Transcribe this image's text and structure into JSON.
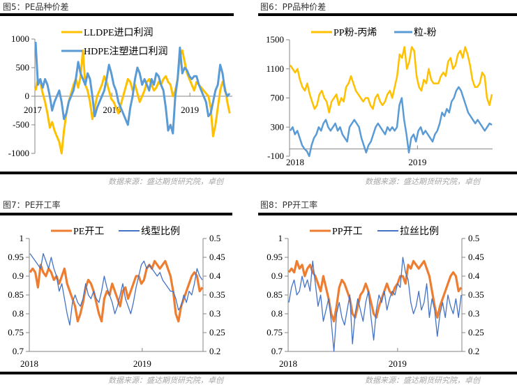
{
  "colors": {
    "gold": "#FFC000",
    "lightblue": "#5B9BD5",
    "orange": "#ED7D31",
    "blue": "#4472C4",
    "axis": "#868686"
  },
  "panels": [
    {
      "title": "图5：PE品种价差",
      "source": "数据来源：盛达期货研究院，卓创"
    },
    {
      "title": "图6：PP品种价差",
      "source": "数据来源：盛达期货研究院，卓创"
    },
    {
      "title": "图7：PE开工率",
      "source": "数据来源：盛达期货研究院，卓创"
    },
    {
      "title": "图8：PP开工率",
      "source": "数据来源：盛达期货研究院，卓创"
    }
  ],
  "chart_data": [
    {
      "type": "line",
      "title": "图5：PE品种价差",
      "ylim": [
        -1000,
        1000
      ],
      "yticks": [
        "1000",
        "500",
        "0",
        "-500",
        "-1000"
      ],
      "xticks": [
        "2017",
        "2018",
        "2019"
      ],
      "x_range": [
        "2017-01",
        "2019-10"
      ],
      "legend": "top-center",
      "series": [
        {
          "name": "LLDPE进口利润",
          "color": "#FFC000",
          "values": [
            100,
            300,
            250,
            50,
            -100,
            -300,
            -550,
            -450,
            -600,
            -700,
            -800,
            -1000,
            -600,
            -300,
            -100,
            50,
            200,
            300,
            150,
            350,
            800,
            200,
            100,
            -100,
            -400,
            -200,
            0,
            100,
            200,
            350,
            250,
            100,
            -50,
            -100,
            -200,
            -300,
            -150,
            0,
            150,
            300,
            250,
            100,
            200,
            50,
            -100,
            0,
            100,
            250,
            300,
            200,
            100,
            150,
            250,
            200,
            300,
            350,
            250,
            200,
            0,
            100,
            300,
            700,
            800,
            600,
            400,
            300,
            200,
            100,
            250,
            200,
            150,
            100,
            50,
            0,
            -200,
            -700,
            -500,
            -200,
            100,
            250,
            150,
            -100,
            -300
          ]
        },
        {
          "name": "HDPE注塑进口利润",
          "color": "#5B9BD5",
          "values": [
            950,
            200,
            300,
            150,
            300,
            200,
            0,
            -250,
            -100,
            0,
            100,
            -100,
            -400,
            -300,
            -100,
            0,
            100,
            300,
            600,
            400,
            300,
            200,
            400,
            300,
            0,
            -350,
            -200,
            -100,
            0,
            100,
            300,
            550,
            400,
            200,
            100,
            -100,
            -200,
            -300,
            -400,
            -500,
            -200,
            0,
            300,
            500,
            400,
            200,
            300,
            200,
            100,
            300,
            200,
            400,
            350,
            200,
            100,
            -200,
            -600,
            -500,
            -650,
            0,
            300,
            850,
            400,
            500,
            450,
            350,
            300,
            350,
            350,
            200,
            100,
            0,
            -100,
            -350,
            -300,
            -100,
            100,
            200,
            550,
            400,
            100,
            0,
            50
          ]
        }
      ]
    },
    {
      "type": "line",
      "title": "图6：PP品种价差",
      "ylim": [
        -100,
        1500
      ],
      "yticks": [
        "1500",
        "1100",
        "700",
        "300",
        "-100"
      ],
      "xticks": [
        "2018",
        "2019"
      ],
      "x_range": [
        "2018-01",
        "2019-10"
      ],
      "legend": "top-center",
      "series": [
        {
          "name": "PP粉-丙烯",
          "color": "#FFC000",
          "values": [
            1150,
            1100,
            1050,
            1100,
            950,
            850,
            800,
            900,
            750,
            650,
            550,
            600,
            750,
            800,
            700,
            650,
            500,
            650,
            700,
            750,
            600,
            700,
            650,
            850,
            900,
            1000,
            900,
            800,
            750,
            700,
            650,
            700,
            700,
            600,
            550,
            700,
            750,
            650,
            600,
            650,
            750,
            800,
            700,
            850,
            1000,
            1300,
            1250,
            1400,
            1100,
            1200,
            1400,
            1350,
            1000,
            850,
            800,
            950,
            900,
            1100,
            950,
            900,
            900,
            900,
            1000,
            1050,
            1000,
            1200,
            1250,
            1100,
            1150,
            1300,
            1350,
            1250,
            1400,
            1300,
            1150,
            950,
            850,
            850,
            900,
            1050,
            1000,
            700,
            600,
            750
          ]
        },
        {
          "name": "粒-粉",
          "color": "#5B9BD5",
          "values": [
            250,
            300,
            200,
            250,
            150,
            50,
            0,
            -30,
            -100,
            50,
            150,
            200,
            300,
            250,
            350,
            400,
            300,
            250,
            300,
            350,
            250,
            300,
            200,
            150,
            100,
            300,
            350,
            400,
            350,
            300,
            150,
            50,
            -50,
            50,
            100,
            200,
            300,
            350,
            300,
            250,
            200,
            300,
            250,
            300,
            250,
            300,
            600,
            700,
            400,
            200,
            -50,
            150,
            200,
            100,
            250,
            300,
            200,
            250,
            200,
            150,
            100,
            200,
            250,
            350,
            500,
            450,
            550,
            500,
            650,
            700,
            800,
            850,
            800,
            700,
            600,
            500,
            450,
            400,
            350,
            400,
            350,
            300,
            250,
            300,
            350,
            330
          ]
        }
      ]
    },
    {
      "type": "line",
      "title": "图7：PE开工率",
      "ylim": [
        0.7,
        1
      ],
      "y2lim": [
        0.2,
        0.5
      ],
      "yticks": [
        "1",
        "0.95",
        "0.9",
        "0.85",
        "0.8",
        "0.75",
        "0.7"
      ],
      "y2ticks": [
        "0.5",
        "0.45",
        "0.4",
        "0.35",
        "0.3",
        "0.25",
        "0.2"
      ],
      "xticks": [
        "2018",
        "2019"
      ],
      "x_range": [
        "2018-01",
        "2019-10"
      ],
      "legend": "top-center",
      "series": [
        {
          "name": "PE开工",
          "color": "#ED7D31",
          "axis": "left",
          "values": [
            0.91,
            0.92,
            0.91,
            0.87,
            0.93,
            0.91,
            0.9,
            0.92,
            0.91,
            0.89,
            0.9,
            0.88,
            0.9,
            0.92,
            0.88,
            0.86,
            0.84,
            0.82,
            0.78,
            0.8,
            0.83,
            0.87,
            0.89,
            0.88,
            0.86,
            0.83,
            0.8,
            0.78,
            0.84,
            0.86,
            0.85,
            0.88,
            0.86,
            0.84,
            0.82,
            0.86,
            0.87,
            0.84,
            0.86,
            0.88,
            0.9,
            0.9,
            0.88,
            0.89,
            0.92,
            0.93,
            0.92,
            0.94,
            0.93,
            0.92,
            0.93,
            0.94,
            0.92,
            0.9,
            0.86,
            0.8,
            0.78,
            0.82,
            0.84,
            0.86,
            0.88,
            0.9,
            0.91,
            0.9,
            0.86,
            0.87
          ]
        },
        {
          "name": "线型比例",
          "color": "#4472C4",
          "axis": "right",
          "values": [
            0.46,
            0.45,
            0.44,
            0.43,
            0.42,
            0.46,
            0.44,
            0.42,
            0.45,
            0.42,
            0.4,
            0.36,
            0.38,
            0.34,
            0.3,
            0.27,
            0.33,
            0.35,
            0.33,
            0.32,
            0.34,
            0.38,
            0.35,
            0.34,
            0.36,
            0.34,
            0.33,
            0.36,
            0.4,
            0.37,
            0.35,
            0.33,
            0.3,
            0.32,
            0.35,
            0.38,
            0.34,
            0.32,
            0.3,
            0.33,
            0.37,
            0.4,
            0.43,
            0.44,
            0.42,
            0.43,
            0.42,
            0.41,
            0.4,
            0.41,
            0.39,
            0.38,
            0.37,
            0.36,
            0.36,
            0.34,
            0.31,
            0.32,
            0.35,
            0.33,
            0.36,
            0.35,
            0.38,
            0.42,
            0.4,
            0.39
          ]
        }
      ]
    },
    {
      "type": "line",
      "title": "图8：PP开工率",
      "ylim": [
        0.7,
        1
      ],
      "y2lim": [
        0.2,
        0.5
      ],
      "yticks": [
        "1",
        "0.95",
        "0.9",
        "0.85",
        "0.8",
        "0.75",
        "0.7"
      ],
      "y2ticks": [
        "0.5",
        "0.45",
        "0.4",
        "0.35",
        "0.3",
        "0.25",
        "0.2"
      ],
      "xticks": [
        "2018",
        "2019"
      ],
      "x_range": [
        "2018-01",
        "2019-10"
      ],
      "legend": "top-center",
      "series": [
        {
          "name": "PP开工",
          "color": "#ED7D31",
          "axis": "left",
          "values": [
            0.91,
            0.92,
            0.91,
            0.94,
            0.92,
            0.93,
            0.9,
            0.92,
            0.93,
            0.91,
            0.9,
            0.88,
            0.86,
            0.9,
            0.87,
            0.84,
            0.8,
            0.78,
            0.82,
            0.87,
            0.89,
            0.88,
            0.86,
            0.84,
            0.8,
            0.79,
            0.82,
            0.85,
            0.86,
            0.88,
            0.86,
            0.83,
            0.8,
            0.79,
            0.82,
            0.84,
            0.86,
            0.88,
            0.86,
            0.85,
            0.87,
            0.88,
            0.9,
            0.9,
            0.88,
            0.93,
            0.92,
            0.94,
            0.93,
            0.92,
            0.93,
            0.94,
            0.92,
            0.9,
            0.86,
            0.82,
            0.79,
            0.82,
            0.84,
            0.86,
            0.88,
            0.9,
            0.91,
            0.9,
            0.86,
            0.87
          ]
        },
        {
          "name": "拉丝比例",
          "color": "#4472C4",
          "axis": "right",
          "values": [
            0.33,
            0.37,
            0.39,
            0.35,
            0.36,
            0.4,
            0.37,
            0.39,
            0.36,
            0.44,
            0.38,
            0.32,
            0.35,
            0.28,
            0.31,
            0.34,
            0.28,
            0.2,
            0.3,
            0.33,
            0.29,
            0.27,
            0.31,
            0.35,
            0.22,
            0.3,
            0.34,
            0.31,
            0.28,
            0.33,
            0.36,
            0.29,
            0.23,
            0.31,
            0.35,
            0.33,
            0.36,
            0.31,
            0.34,
            0.36,
            0.35,
            0.38,
            0.37,
            0.45,
            0.41,
            0.39,
            0.33,
            0.3,
            0.32,
            0.36,
            0.31,
            0.33,
            0.38,
            0.29,
            0.34,
            0.31,
            0.24,
            0.3,
            0.33,
            0.29,
            0.35,
            0.32,
            0.3,
            0.34,
            0.29,
            0.35
          ]
        }
      ]
    }
  ]
}
